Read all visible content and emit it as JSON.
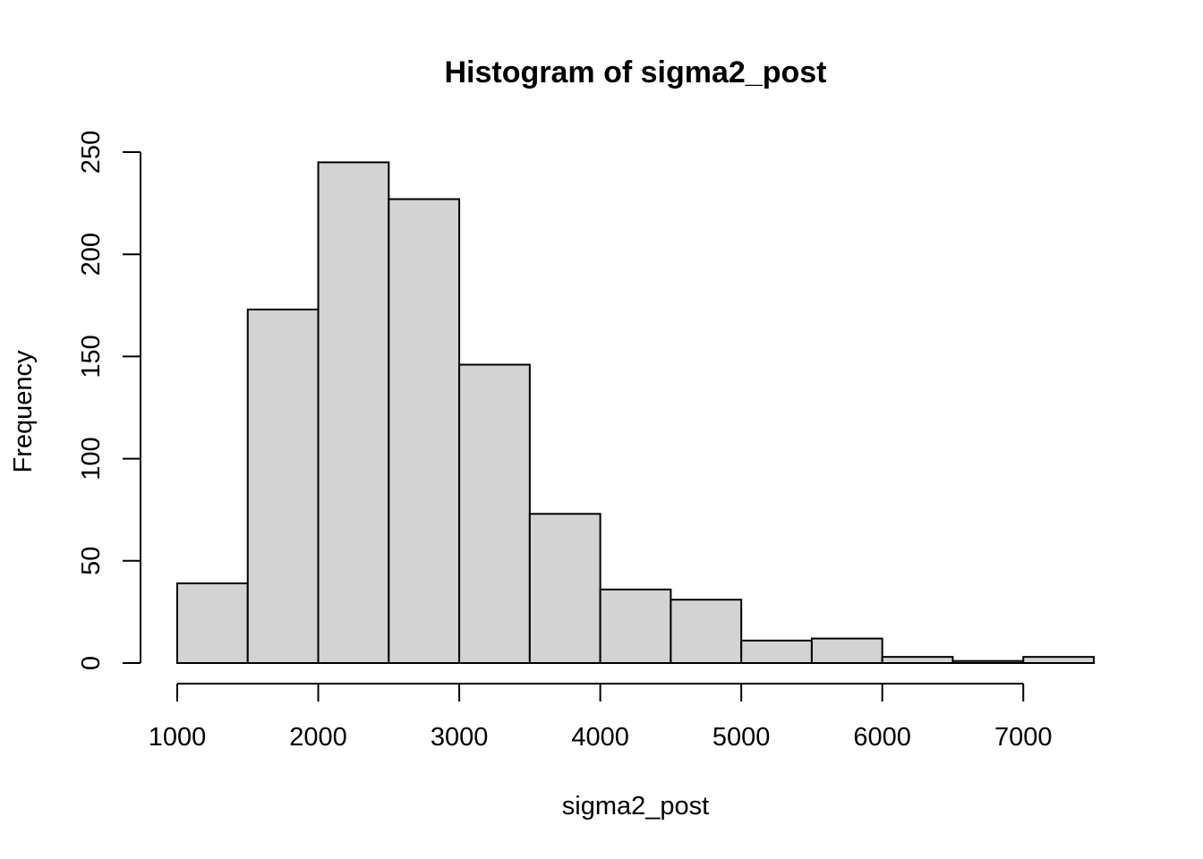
{
  "chart_data": {
    "type": "bar",
    "title": "Histogram of sigma2_post",
    "xlabel": "sigma2_post",
    "ylabel": "Frequency",
    "bins": [
      {
        "x0": 1000,
        "x1": 1500,
        "count": 39
      },
      {
        "x0": 1500,
        "x1": 2000,
        "count": 173
      },
      {
        "x0": 2000,
        "x1": 2500,
        "count": 245
      },
      {
        "x0": 2500,
        "x1": 3000,
        "count": 227
      },
      {
        "x0": 3000,
        "x1": 3500,
        "count": 146
      },
      {
        "x0": 3500,
        "x1": 4000,
        "count": 73
      },
      {
        "x0": 4000,
        "x1": 4500,
        "count": 36
      },
      {
        "x0": 4500,
        "x1": 5000,
        "count": 31
      },
      {
        "x0": 5000,
        "x1": 5500,
        "count": 11
      },
      {
        "x0": 5500,
        "x1": 6000,
        "count": 12
      },
      {
        "x0": 6000,
        "x1": 6500,
        "count": 3
      },
      {
        "x0": 6500,
        "x1": 7000,
        "count": 1
      },
      {
        "x0": 7000,
        "x1": 7500,
        "count": 3
      }
    ],
    "xticks": [
      1000,
      2000,
      3000,
      4000,
      5000,
      6000,
      7000
    ],
    "yticks": [
      0,
      50,
      100,
      150,
      200,
      250
    ],
    "xlim": [
      1000,
      7500
    ],
    "ylim": [
      0,
      250
    ],
    "grid": false,
    "colors": {
      "bar_fill": "#d3d3d3",
      "bar_stroke": "#000000"
    }
  }
}
